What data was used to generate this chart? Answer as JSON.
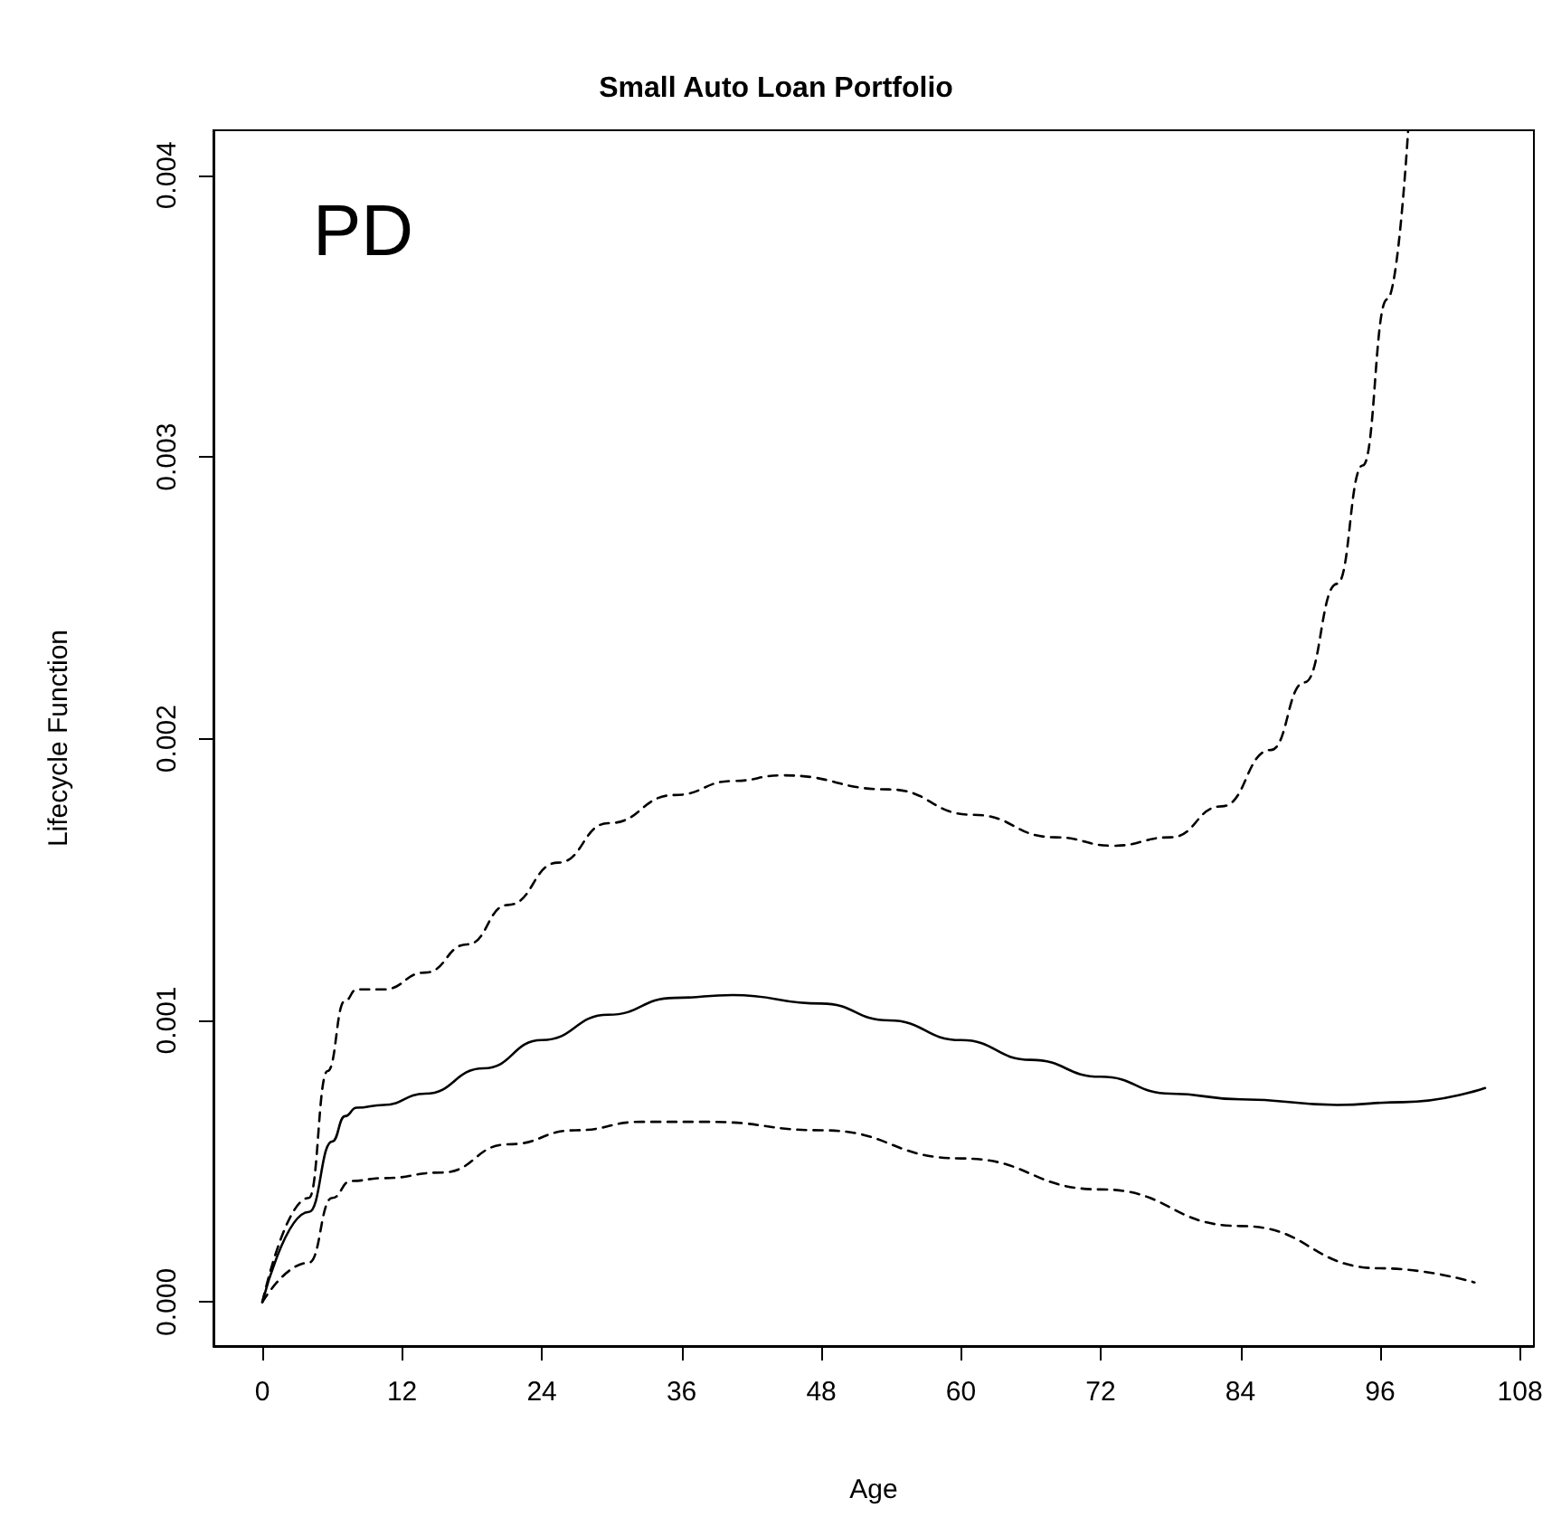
{
  "chart_data": {
    "type": "line",
    "title": "Small Auto Loan Portfolio",
    "xlabel": "Age",
    "ylabel": "Lifecycle Function",
    "annotations": [
      "PD"
    ],
    "xlim": [
      -4.2,
      109.2
    ],
    "xticks": [
      0,
      12,
      24,
      36,
      48,
      60,
      72,
      84,
      96,
      108
    ],
    "ylim": [
      -0.000156,
      0.00416
    ],
    "yticks": [
      {
        "value": 0,
        "label": "0.000"
      },
      {
        "value": 0.001,
        "label": "0.001"
      },
      {
        "value": 0.002,
        "label": "0.002"
      },
      {
        "value": 0.003,
        "label": "0.003"
      },
      {
        "value": 0.004,
        "label": "0.004"
      }
    ],
    "grid": false,
    "marker": "none",
    "series": [
      {
        "color": "#000000",
        "line_style": "solid",
        "x": [
          0,
          4,
          6,
          7.1,
          8.1,
          10.4,
          14,
          19,
          24,
          29.7,
          35.4,
          40.4,
          48,
          53.8,
          60,
          66,
          72,
          78,
          84,
          92.3,
          98,
          105
        ],
        "values": [
          0,
          0.00032,
          0.00057,
          0.00066,
          0.00069,
          0.0007,
          0.00074,
          0.00083,
          0.00093,
          0.00102,
          0.00108,
          0.00109,
          0.00106,
          0.001,
          0.00093,
          0.00086,
          0.0008,
          0.00074,
          0.00072,
          0.0007,
          0.00071,
          0.00076
        ]
      },
      {
        "color": "#000000",
        "line_style": "dashed",
        "x": [
          0,
          4,
          5.6,
          7.1,
          8.1,
          10.4,
          14,
          17.6,
          21.1,
          25.4,
          29.7,
          35.4,
          40.4,
          44.7,
          53.8,
          61,
          68.1,
          73.1,
          78,
          82.4,
          86.6,
          89.5,
          92.3,
          94.5,
          96.6,
          98.4
        ],
        "values": [
          0,
          0.00037,
          0.00082,
          0.00107,
          0.00111,
          0.00111,
          0.00117,
          0.00127,
          0.00141,
          0.00156,
          0.0017,
          0.0018,
          0.00185,
          0.00187,
          0.00182,
          0.00173,
          0.00165,
          0.00162,
          0.00165,
          0.00176,
          0.00196,
          0.0022,
          0.00255,
          0.00297,
          0.00356,
          0.00416
        ]
      },
      {
        "color": "#000000",
        "line_style": "dashed",
        "x": [
          0,
          4,
          6,
          7.6,
          10.4,
          15.4,
          21.1,
          26.9,
          32.6,
          38.3,
          48,
          60,
          72,
          84,
          96,
          104.1
        ],
        "values": [
          0,
          0.00014,
          0.00037,
          0.00043,
          0.00044,
          0.00046,
          0.00056,
          0.00061,
          0.00064,
          0.00064,
          0.00061,
          0.00051,
          0.0004,
          0.00027,
          0.00012,
          7e-05
        ]
      }
    ]
  }
}
